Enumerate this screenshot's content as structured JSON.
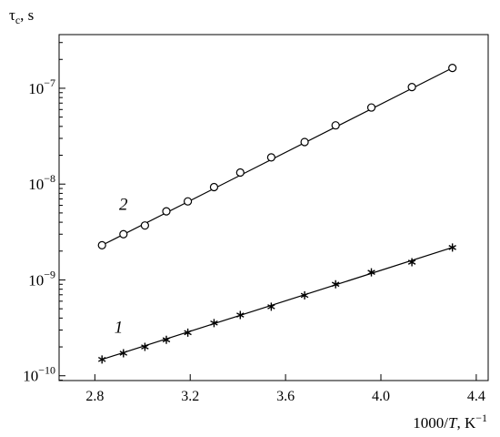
{
  "chart_data": {
    "type": "scatter",
    "title": "",
    "ylabel": {
      "base": "τ",
      "sub": "c",
      "rest": ", s"
    },
    "xlabel": {
      "pre": "1000/",
      "var": "T",
      "post": ", K",
      "sup": "−1"
    },
    "xlim": [
      2.65,
      4.45
    ],
    "ylim": [
      -10.05,
      -6.44
    ],
    "yscale": "log",
    "grid": false,
    "legend": "none",
    "x_ticks": [
      2.8,
      3.2,
      3.6,
      4.0,
      4.4
    ],
    "x_tick_labels": [
      "2.8",
      "3.2",
      "3.6",
      "4.0",
      "4.4"
    ],
    "y_ticks": [
      -10,
      -9,
      -8,
      -7
    ],
    "y_tick_labels": [
      {
        "base": "10",
        "exp": "−10"
      },
      {
        "base": "10",
        "exp": "−9"
      },
      {
        "base": "10",
        "exp": "−8"
      },
      {
        "base": "10",
        "exp": "−7"
      }
    ],
    "series": [
      {
        "name": "1",
        "marker": "asterisk",
        "x": [
          2.83,
          2.92,
          3.01,
          3.1,
          3.19,
          3.3,
          3.41,
          3.54,
          3.68,
          3.81,
          3.96,
          4.13,
          4.3
        ],
        "y": [
          1.48e-10,
          1.72e-10,
          2e-10,
          2.37e-10,
          2.82e-10,
          3.55e-10,
          4.3e-10,
          5.25e-10,
          6.9e-10,
          9e-10,
          1.2e-09,
          1.53e-09,
          2.18e-09
        ],
        "label_at": [
          2.9,
          -9.55
        ]
      },
      {
        "name": "2",
        "marker": "circle",
        "x": [
          2.83,
          2.92,
          3.01,
          3.1,
          3.19,
          3.3,
          3.41,
          3.54,
          3.68,
          3.81,
          3.96,
          4.13,
          4.3
        ],
        "y": [
          2.3e-09,
          3e-09,
          3.7e-09,
          5.2e-09,
          6.6e-09,
          9.3e-09,
          1.32e-08,
          1.9e-08,
          2.75e-08,
          4.1e-08,
          6.3e-08,
          1.03e-07,
          1.63e-07
        ],
        "label_at": [
          2.92,
          -8.27
        ]
      }
    ],
    "fit_lines": [
      {
        "series": "1",
        "x": [
          2.83,
          4.3
        ],
        "y": [
          1.48e-10,
          2.18e-09
        ]
      },
      {
        "series": "2",
        "x": [
          2.83,
          4.3
        ],
        "y": [
          2.3e-09,
          1.63e-07
        ]
      }
    ]
  }
}
